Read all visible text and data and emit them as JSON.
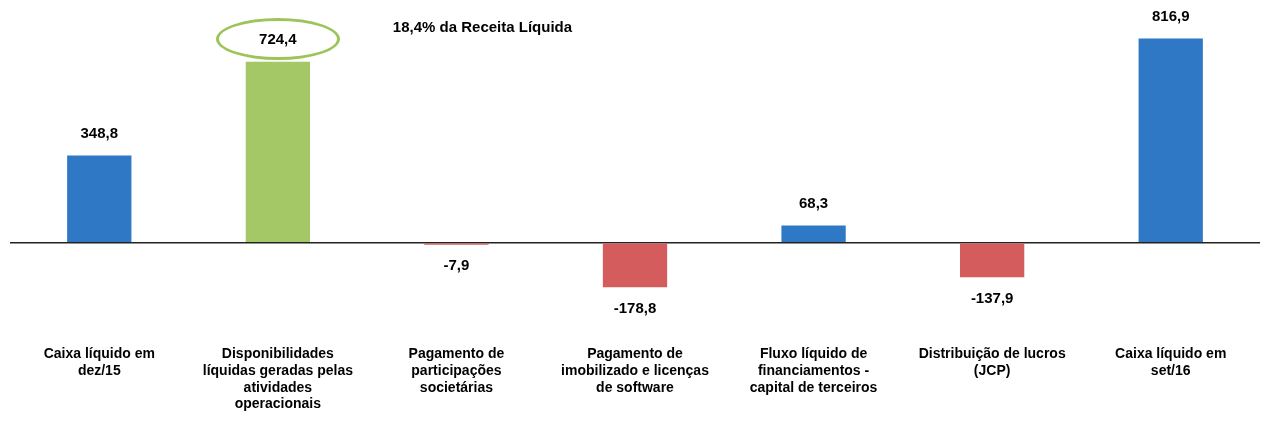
{
  "chart_data": {
    "type": "bar",
    "categories": [
      "Caixa líquido em dez/15",
      "Disponibilidades líquidas geradas pelas atividades operacionais",
      "Pagamento de participações societárias",
      "Pagamento de imobilizado e licenças de software",
      "Fluxo líquido de financiamentos - capital de terceiros",
      "Distribuição de lucros (JCP)",
      "Caixa líquido em set/16"
    ],
    "values": [
      348.8,
      724.4,
      -7.9,
      -178.8,
      68.3,
      -137.9,
      816.9
    ],
    "colors": [
      "#2e78c6",
      "#a5c866",
      "#d45c5c",
      "#d45c5c",
      "#2e78c6",
      "#d45c5c",
      "#2e78c6"
    ],
    "value_labels": [
      "348,8",
      "724,4",
      "-7,9",
      "-178,8",
      "68,3",
      "-137,9",
      "816,9"
    ],
    "annotations": [
      "18,4% da Receita Líquida"
    ],
    "grid": false,
    "legend": false
  }
}
